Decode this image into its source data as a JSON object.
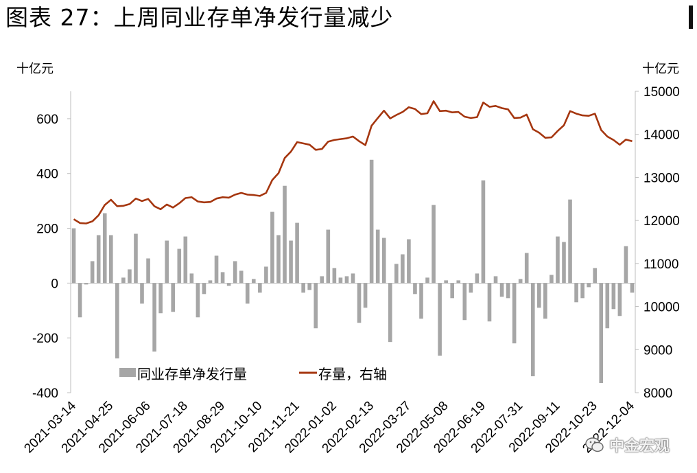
{
  "title": "图表 27：上周同业存单净发行量减少",
  "watermark": "中金宏观",
  "chart_data": {
    "type": "bar+line",
    "y_left": {
      "unit_label": "十亿元",
      "lim": [
        -400,
        700
      ],
      "ticks": [
        -400,
        -200,
        0,
        200,
        400,
        600
      ]
    },
    "y_right": {
      "unit_label": "十亿元",
      "lim": [
        8000,
        15000
      ],
      "ticks": [
        8000,
        9000,
        10000,
        11000,
        12000,
        13000,
        14000,
        15000
      ]
    },
    "x_tick_labels": [
      "2021-03-14",
      "2021-04-25",
      "2021-06-06",
      "2021-07-18",
      "2021-08-29",
      "2021-10-10",
      "2021-11-21",
      "2022-01-02",
      "2022-02-13",
      "2022-03-27",
      "2022-05-08",
      "2022-06-19",
      "2022-07-31",
      "2022-09-11",
      "2022-10-23",
      "2022-12-04"
    ],
    "legend": {
      "position": "bottom-left",
      "bar_label": "同业存单净发行量",
      "line_label": "存量，右轴"
    },
    "colors": {
      "bar": "#a6a6a6",
      "line": "#a5360f"
    },
    "series": [
      {
        "name": "同业存单净发行量",
        "axis": "left",
        "kind": "bar",
        "values": [
          200,
          -125,
          -5,
          80,
          175,
          255,
          175,
          -275,
          20,
          50,
          180,
          -75,
          90,
          -250,
          -110,
          155,
          -105,
          125,
          170,
          35,
          -125,
          -40,
          10,
          100,
          40,
          -10,
          80,
          45,
          -75,
          15,
          -35,
          60,
          260,
          175,
          355,
          155,
          220,
          -35,
          -25,
          -165,
          25,
          195,
          55,
          20,
          25,
          35,
          -145,
          -90,
          450,
          195,
          165,
          -215,
          70,
          105,
          160,
          -40,
          -130,
          20,
          285,
          -265,
          10,
          -55,
          10,
          -135,
          -35,
          35,
          375,
          -140,
          25,
          -50,
          -55,
          -220,
          15,
          110,
          -340,
          -90,
          -130,
          30,
          170,
          150,
          305,
          -70,
          -55,
          -15,
          55,
          -365,
          -165,
          -95,
          -120,
          135,
          -35
        ]
      },
      {
        "name": "存量，右轴",
        "axis": "right",
        "kind": "line",
        "values": [
          12030,
          11940,
          11930,
          11980,
          12120,
          12360,
          12480,
          12330,
          12340,
          12380,
          12510,
          12450,
          12500,
          12330,
          12260,
          12370,
          12300,
          12400,
          12520,
          12540,
          12440,
          12420,
          12430,
          12510,
          12540,
          12530,
          12600,
          12640,
          12600,
          12590,
          12570,
          12640,
          12940,
          13100,
          13450,
          13600,
          13820,
          13790,
          13760,
          13640,
          13660,
          13830,
          13870,
          13890,
          13910,
          13950,
          13840,
          13750,
          14200,
          14380,
          14550,
          14370,
          14450,
          14520,
          14630,
          14590,
          14470,
          14490,
          14770,
          14540,
          14550,
          14510,
          14520,
          14410,
          14380,
          14400,
          14740,
          14640,
          14660,
          14610,
          14580,
          14380,
          14390,
          14460,
          14120,
          14040,
          13920,
          13930,
          14080,
          14210,
          14540,
          14480,
          14440,
          14430,
          14480,
          14100,
          13950,
          13870,
          13760,
          13880,
          13840
        ]
      }
    ]
  }
}
